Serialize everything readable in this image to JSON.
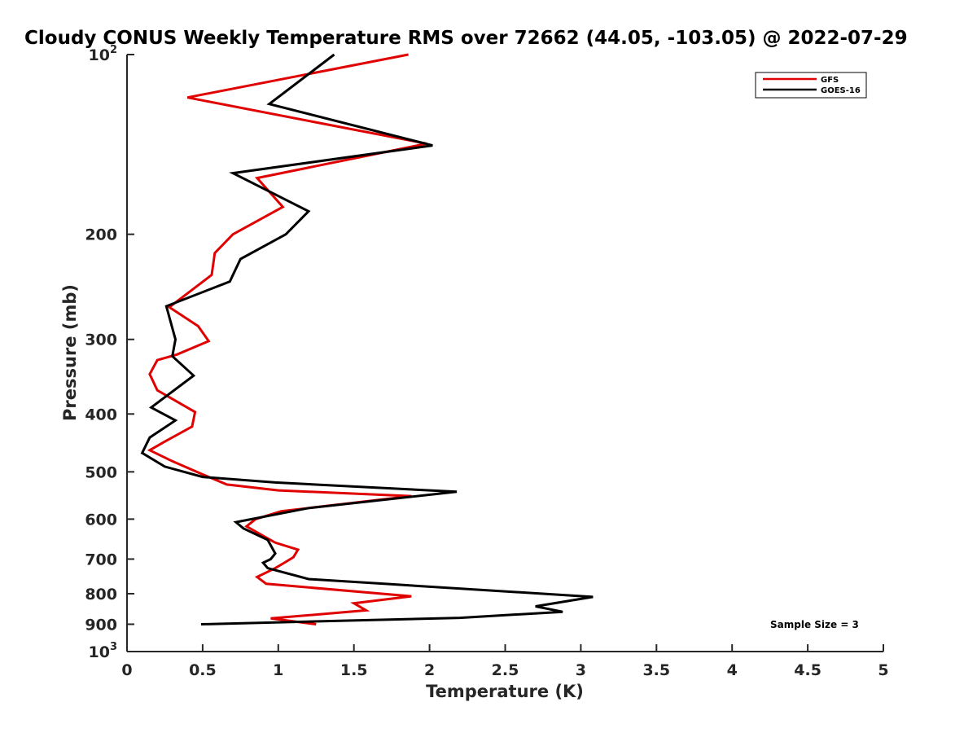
{
  "chart_data": {
    "type": "line",
    "title": "Cloudy CONUS Weekly Temperature RMS over 72662 (44.05, -103.05) @ 2022-07-29",
    "xlabel": "Temperature (K)",
    "ylabel": "Pressure (mb)",
    "xlim": [
      0,
      5
    ],
    "ylim": [
      100,
      1000
    ],
    "y_scale": "log",
    "y_reversed": true,
    "grid": false,
    "legend_position": "top-right",
    "x_ticks": [
      "0",
      "0.5",
      "1",
      "1.5",
      "2",
      "2.5",
      "3",
      "3.5",
      "4",
      "4.5",
      "5"
    ],
    "y_ticks": [
      {
        "value": 100,
        "base": "10",
        "exp": "2"
      },
      {
        "value": 200,
        "label": "200"
      },
      {
        "value": 300,
        "label": "300"
      },
      {
        "value": 400,
        "label": "400"
      },
      {
        "value": 500,
        "label": "500"
      },
      {
        "value": 600,
        "label": "600"
      },
      {
        "value": 700,
        "label": "700"
      },
      {
        "value": 800,
        "label": "800"
      },
      {
        "value": 900,
        "label": "900"
      },
      {
        "value": 1000,
        "base": "10",
        "exp": "3"
      }
    ],
    "annotation": "Sample Size = 3",
    "series": [
      {
        "name": "GFS",
        "color": "#e00000",
        "points": [
          [
            1.86,
            100
          ],
          [
            0.4,
            118
          ],
          [
            1.98,
            141
          ],
          [
            0.86,
            161
          ],
          [
            1.03,
            180
          ],
          [
            0.7,
            200
          ],
          [
            0.58,
            215
          ],
          [
            0.56,
            234
          ],
          [
            0.28,
            265
          ],
          [
            0.47,
            285
          ],
          [
            0.54,
            302
          ],
          [
            0.33,
            318
          ],
          [
            0.2,
            325
          ],
          [
            0.15,
            343
          ],
          [
            0.2,
            365
          ],
          [
            0.45,
            397
          ],
          [
            0.43,
            420
          ],
          [
            0.25,
            445
          ],
          [
            0.15,
            460
          ],
          [
            0.3,
            480
          ],
          [
            0.5,
            505
          ],
          [
            0.66,
            525
          ],
          [
            1.0,
            537
          ],
          [
            1.88,
            549
          ],
          [
            1.02,
            582
          ],
          [
            0.85,
            600
          ],
          [
            0.79,
            617
          ],
          [
            0.9,
            640
          ],
          [
            0.98,
            657
          ],
          [
            1.13,
            675
          ],
          [
            1.1,
            695
          ],
          [
            1.04,
            710
          ],
          [
            0.98,
            725
          ],
          [
            0.86,
            750
          ],
          [
            0.92,
            770
          ],
          [
            1.88,
            808
          ],
          [
            1.5,
            830
          ],
          [
            1.58,
            853
          ],
          [
            0.95,
            880
          ],
          [
            1.25,
            900
          ]
        ]
      },
      {
        "name": "GOES-16",
        "color": "#000000",
        "points": [
          [
            1.37,
            100
          ],
          [
            0.94,
            121
          ],
          [
            2.02,
            142
          ],
          [
            0.7,
            158
          ],
          [
            1.2,
            183
          ],
          [
            1.05,
            200
          ],
          [
            0.75,
            220
          ],
          [
            0.68,
            240
          ],
          [
            0.26,
            264
          ],
          [
            0.32,
            300
          ],
          [
            0.3,
            320
          ],
          [
            0.44,
            345
          ],
          [
            0.16,
            390
          ],
          [
            0.32,
            410
          ],
          [
            0.15,
            438
          ],
          [
            0.1,
            465
          ],
          [
            0.25,
            490
          ],
          [
            0.5,
            510
          ],
          [
            0.98,
            521
          ],
          [
            2.18,
            540
          ],
          [
            1.2,
            575
          ],
          [
            0.72,
            607
          ],
          [
            0.77,
            622
          ],
          [
            0.93,
            650
          ],
          [
            0.98,
            685
          ],
          [
            0.95,
            700
          ],
          [
            0.9,
            710
          ],
          [
            0.93,
            725
          ],
          [
            1.2,
            756
          ],
          [
            1.7,
            770
          ],
          [
            3.08,
            810
          ],
          [
            2.7,
            840
          ],
          [
            2.88,
            858
          ],
          [
            2.2,
            878
          ],
          [
            0.49,
            900
          ]
        ]
      }
    ]
  }
}
